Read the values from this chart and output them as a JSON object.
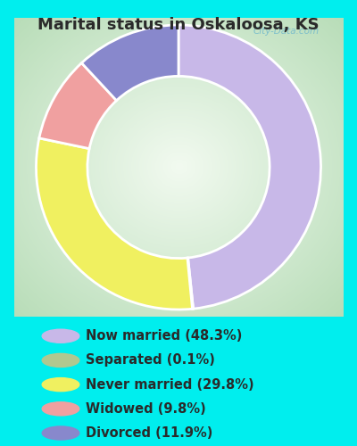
{
  "title": "Marital status in Oskaloosa, KS",
  "title_color": "#2a2a2a",
  "bg_outer": "#00EEEE",
  "slices": [
    {
      "label": "Now married (48.3%)",
      "value": 48.3,
      "color": "#c8b8e8"
    },
    {
      "label": "Separated (0.1%)",
      "value": 0.1,
      "color": "#b0c890"
    },
    {
      "label": "Never married (29.8%)",
      "value": 29.8,
      "color": "#f0f060"
    },
    {
      "label": "Widowed (9.8%)",
      "value": 9.8,
      "color": "#f0a0a0"
    },
    {
      "label": "Divorced (11.9%)",
      "value": 11.9,
      "color": "#8888cc"
    }
  ],
  "legend_text_color": "#2a2a2a",
  "legend_fontsize": 10.5,
  "title_fontsize": 13,
  "watermark": "City-Data.com",
  "donut_width": 0.36,
  "start_angle": 90
}
